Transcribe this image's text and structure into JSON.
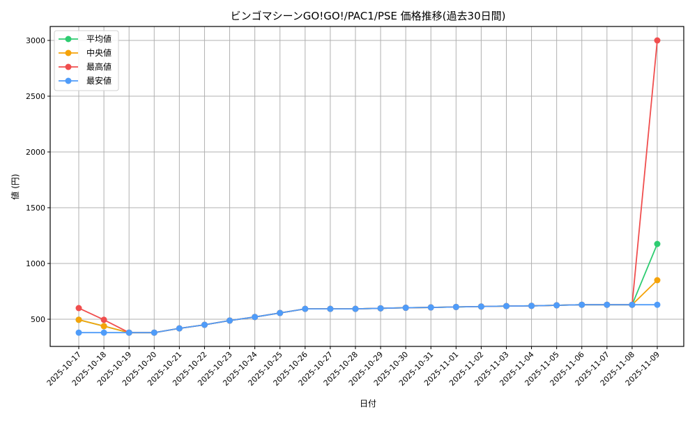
{
  "chart_data": {
    "type": "line",
    "title": "ビンゴマシーンGO!GO!/PAC1/PSE 価格推移(過去30日間)",
    "xlabel": "日付",
    "ylabel": "値 (円)",
    "ylim": [
      250,
      3125
    ],
    "yticks": [
      500,
      1000,
      1500,
      2000,
      2500,
      3000
    ],
    "grid": true,
    "legend_position": "upper left",
    "categories": [
      "2025-10-17",
      "2025-10-18",
      "2025-10-19",
      "2025-10-20",
      "2025-10-21",
      "2025-10-22",
      "2025-10-23",
      "2025-10-24",
      "2025-10-25",
      "2025-10-26",
      "2025-10-27",
      "2025-10-28",
      "2025-10-29",
      "2025-10-30",
      "2025-10-31",
      "2025-11-01",
      "2025-11-02",
      "2025-11-03",
      "2025-11-04",
      "2025-11-05",
      "2025-11-06",
      "2025-11-07",
      "2025-11-08",
      "2025-11-09"
    ],
    "series": [
      {
        "name": "平均値",
        "color": "#2ecc71",
        "values": [
          495,
          438,
          380,
          380,
          418,
          450,
          488,
          520,
          556,
          593,
          593,
          593,
          598,
          603,
          606,
          610,
          614,
          618,
          620,
          625,
          630,
          630,
          630,
          1175
        ]
      },
      {
        "name": "中央値",
        "color": "#f5a30a",
        "values": [
          495,
          438,
          380,
          380,
          418,
          450,
          488,
          520,
          556,
          593,
          593,
          593,
          598,
          603,
          606,
          610,
          614,
          618,
          620,
          625,
          630,
          630,
          630,
          850
        ]
      },
      {
        "name": "最高値",
        "color": "#f04e4e",
        "values": [
          600,
          495,
          380,
          380,
          418,
          450,
          488,
          520,
          556,
          593,
          593,
          593,
          598,
          603,
          606,
          610,
          614,
          618,
          620,
          625,
          630,
          630,
          630,
          3000
        ]
      },
      {
        "name": "最安値",
        "color": "#4f9cf9",
        "values": [
          380,
          380,
          380,
          380,
          418,
          450,
          488,
          520,
          556,
          593,
          593,
          593,
          598,
          603,
          606,
          610,
          614,
          618,
          620,
          625,
          630,
          630,
          630,
          630
        ]
      }
    ]
  }
}
